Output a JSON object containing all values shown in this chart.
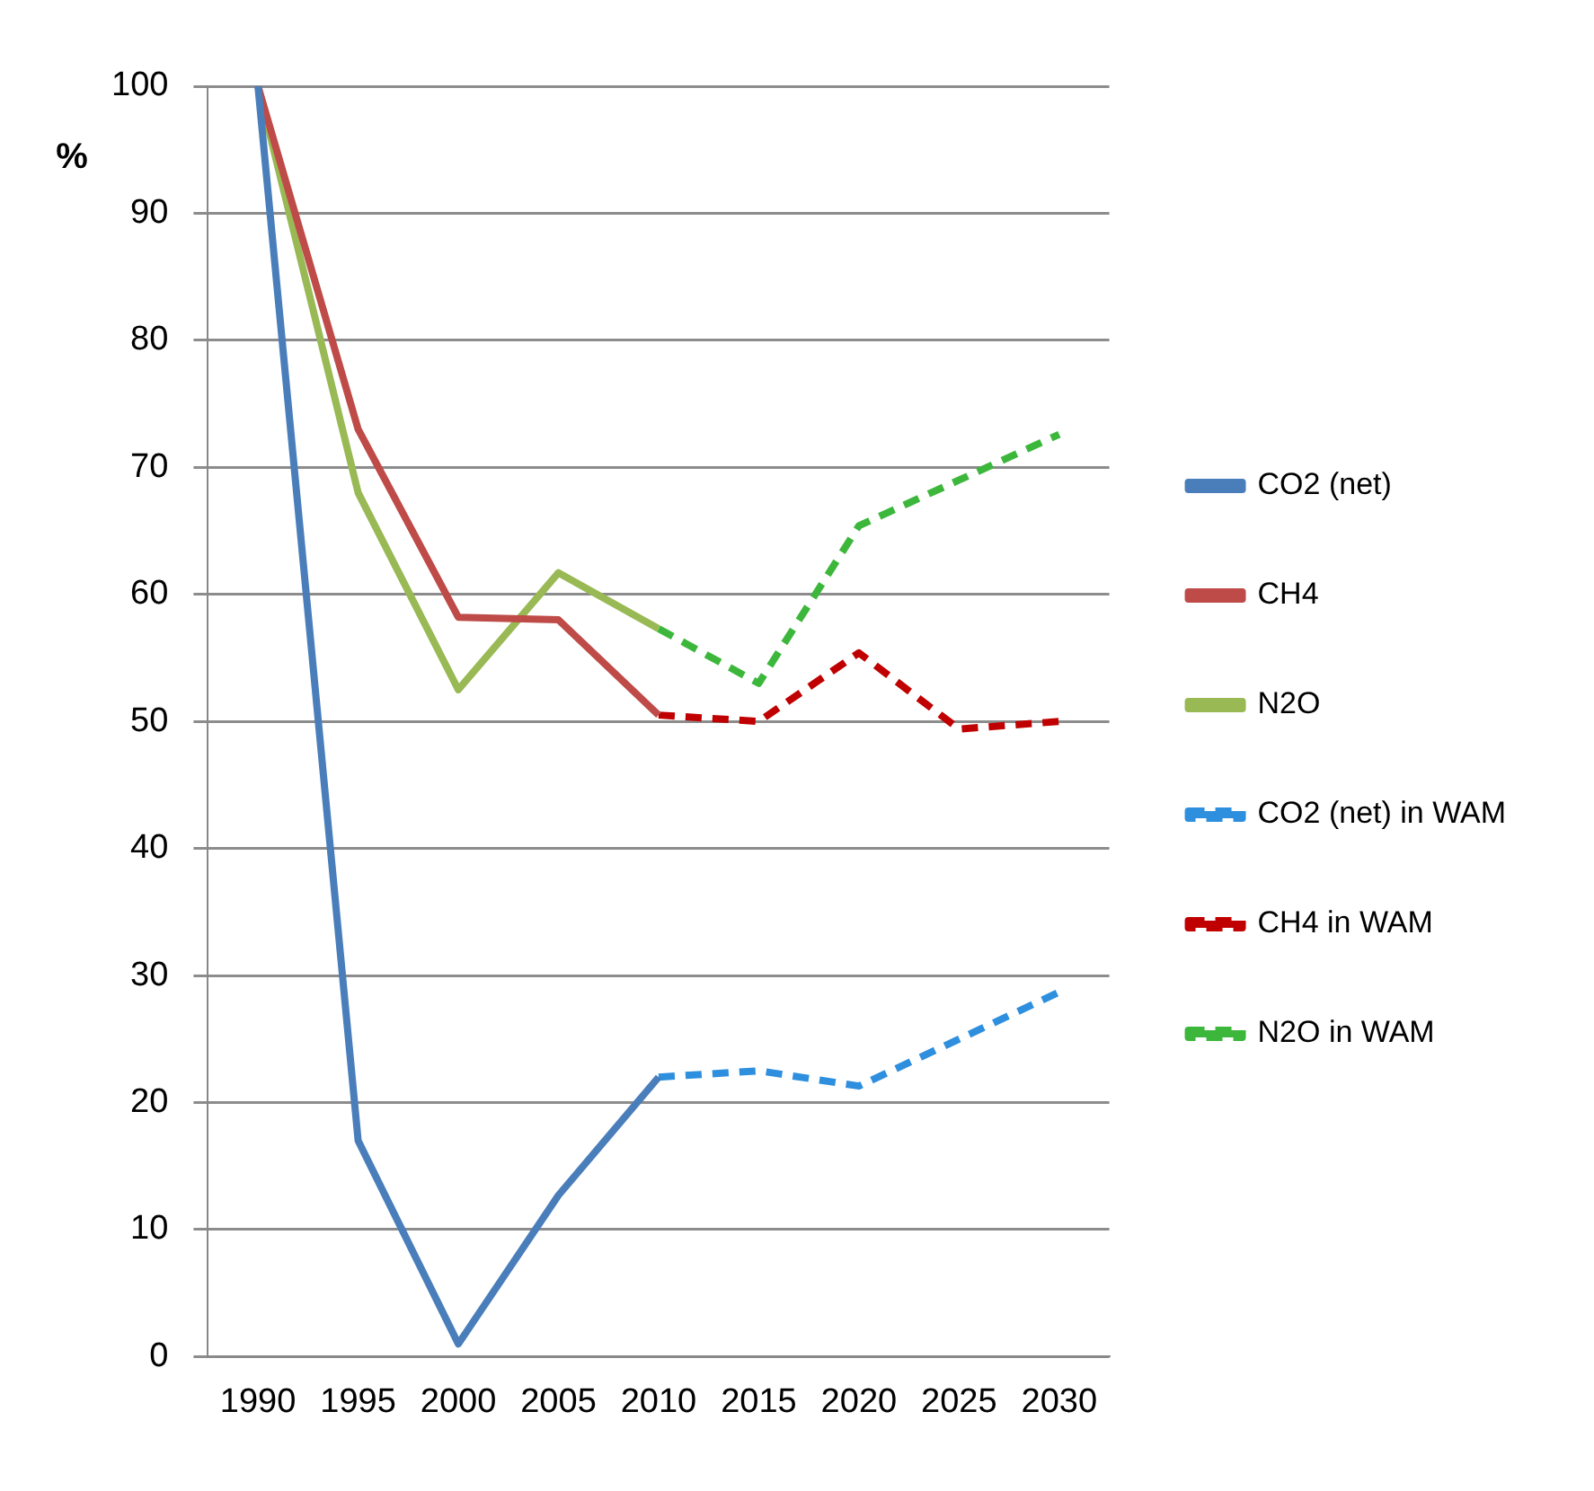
{
  "chart_data": {
    "type": "line",
    "ylabel": "%",
    "categories": [
      "1990",
      "1995",
      "2000",
      "2005",
      "2010",
      "2015",
      "2020",
      "2025",
      "2030"
    ],
    "ylim": [
      0,
      100
    ],
    "yticks": [
      0,
      10,
      20,
      30,
      40,
      50,
      60,
      70,
      80,
      90,
      100
    ],
    "grid": "y",
    "legend": "right",
    "marker": "none",
    "series": [
      {
        "name": "CO2 (net)",
        "color": "#4a7ebb",
        "line_style": "solid",
        "values": [
          100,
          17,
          1,
          12.7,
          22,
          null,
          null,
          null,
          null
        ]
      },
      {
        "name": "CH4",
        "color": "#be4b48",
        "line_style": "solid",
        "values": [
          100,
          73,
          58.2,
          58,
          50.5,
          null,
          null,
          null,
          null
        ]
      },
      {
        "name": "N2O",
        "color": "#98b954",
        "line_style": "solid",
        "values": [
          100,
          68,
          52.5,
          61.7,
          57.3,
          null,
          null,
          null,
          null
        ]
      },
      {
        "name": "CO2 (net) in WAM",
        "color": "#2e8fde",
        "line_style": "dashed",
        "values": [
          null,
          null,
          null,
          null,
          22,
          22.5,
          21.3,
          25,
          28.7
        ]
      },
      {
        "name": "CH4 in WAM",
        "color": "#c00000",
        "line_style": "dashed",
        "values": [
          null,
          null,
          null,
          null,
          50.5,
          50,
          55.4,
          49.4,
          50
        ]
      },
      {
        "name": "N2O in WAM",
        "color": "#3cb73c",
        "line_style": "dashed",
        "values": [
          null,
          null,
          null,
          null,
          57.3,
          53,
          65.4,
          69,
          72.6
        ]
      }
    ]
  }
}
